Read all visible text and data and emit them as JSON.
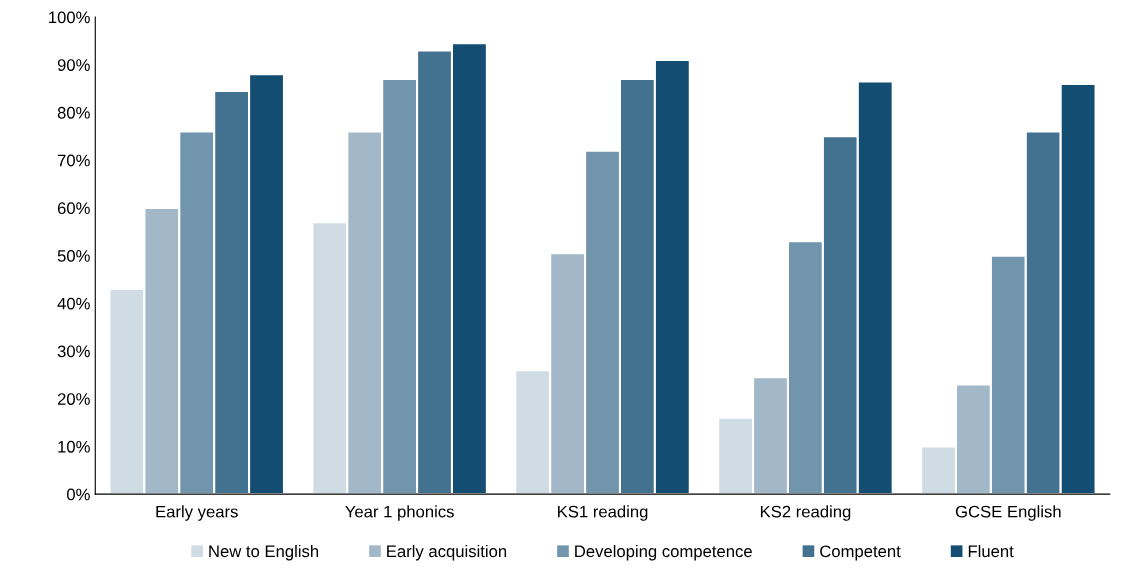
{
  "chart_data": {
    "type": "bar",
    "categories": [
      "Early years",
      "Year 1 phonics",
      "KS1 reading",
      "KS2 reading",
      "GCSE English"
    ],
    "series": [
      {
        "name": "New to English",
        "color": "#d0dce4",
        "values": [
          43,
          57,
          26,
          16,
          10
        ]
      },
      {
        "name": "Early acquisition",
        "color": "#a2b8c8",
        "values": [
          60,
          76,
          50.5,
          24.5,
          23
        ]
      },
      {
        "name": "Developing competence",
        "color": "#7295ae",
        "values": [
          76,
          87,
          72,
          53,
          50
        ]
      },
      {
        "name": "Competent",
        "color": "#437290",
        "values": [
          84.5,
          93,
          87,
          75,
          76
        ]
      },
      {
        "name": "Fluent",
        "color": "#134d72",
        "values": [
          88,
          94.5,
          91,
          86.5,
          86
        ]
      }
    ],
    "ylim": [
      0,
      100
    ],
    "yticks": [
      {
        "value": 0,
        "label": "0%"
      },
      {
        "value": 10,
        "label": "10%"
      },
      {
        "value": 20,
        "label": "20%"
      },
      {
        "value": 30,
        "label": "30%"
      },
      {
        "value": 40,
        "label": "40%"
      },
      {
        "value": 50,
        "label": "50%"
      },
      {
        "value": 60,
        "label": "60%"
      },
      {
        "value": 70,
        "label": "70%"
      },
      {
        "value": 80,
        "label": "80%"
      },
      {
        "value": 90,
        "label": "90%"
      },
      {
        "value": 100,
        "label": "100%"
      }
    ],
    "grid": false,
    "legend": "bottom"
  }
}
